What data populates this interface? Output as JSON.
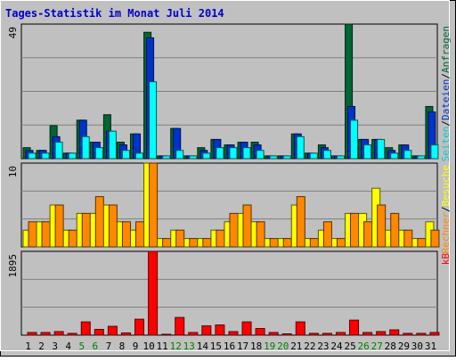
{
  "title": "Tages-Statistik im Monat Juli 2014",
  "colors": {
    "background": "#c0c0c0",
    "title": "#0000cc",
    "anfragen": "#006633",
    "dateien": "#0033cc",
    "seiten": "#00ffff",
    "besuche": "#ffff00",
    "rechner": "#ff8800",
    "kb": "#ff0000",
    "weekend_label": "#008000"
  },
  "chart_data": [
    {
      "type": "bar",
      "panel": "hits",
      "ymax_label": "49",
      "ylim": [
        0,
        49
      ],
      "side_label": {
        "parts": [
          {
            "text": "Seiten",
            "color": "#00cccc"
          },
          {
            "text": "/",
            "color": "#000000"
          },
          {
            "text": "Dateien",
            "color": "#0033cc"
          },
          {
            "text": "/",
            "color": "#000000"
          },
          {
            "text": "Anfragen",
            "color": "#006633"
          }
        ]
      },
      "categories": [
        "1",
        "2",
        "3",
        "4",
        "5",
        "6",
        "7",
        "8",
        "9",
        "10",
        "11",
        "12",
        "13",
        "14",
        "15",
        "16",
        "17",
        "18",
        "19",
        "20",
        "21",
        "22",
        "23",
        "24",
        "25",
        "26",
        "27",
        "28",
        "29",
        "30",
        "31"
      ],
      "weekend_days": [
        "5",
        "6",
        "12",
        "13",
        "19",
        "20",
        "26",
        "27"
      ],
      "series": [
        {
          "name": "Anfragen",
          "color": "#006633",
          "values": [
            4,
            3,
            12,
            2,
            14,
            6,
            16,
            6,
            9,
            46,
            1,
            11,
            1,
            4,
            7,
            5,
            6,
            6,
            1,
            1,
            9,
            2,
            5,
            1,
            49,
            7,
            7,
            4,
            5,
            1,
            19
          ]
        },
        {
          "name": "Dateien",
          "color": "#0033cc",
          "values": [
            3,
            3,
            8,
            2,
            14,
            6,
            10,
            5,
            9,
            44,
            1,
            11,
            1,
            3,
            7,
            5,
            6,
            5,
            1,
            1,
            9,
            2,
            4,
            1,
            19,
            7,
            7,
            3,
            5,
            1,
            17
          ]
        },
        {
          "name": "Seiten",
          "color": "#00ffff",
          "values": [
            2,
            2,
            6,
            2,
            8,
            4,
            10,
            3,
            2,
            28,
            1,
            3,
            1,
            2,
            4,
            4,
            4,
            3,
            1,
            1,
            8,
            2,
            3,
            1,
            14,
            5,
            7,
            2,
            3,
            1,
            5
          ]
        }
      ]
    },
    {
      "type": "bar",
      "panel": "visits",
      "ymax_label": "10",
      "ylim": [
        0,
        10
      ],
      "side_label": {
        "parts": [
          {
            "text": "Rechner",
            "color": "#ff8800"
          },
          {
            "text": "/",
            "color": "#000000"
          },
          {
            "text": "Besuche",
            "color": "#ffff00"
          }
        ]
      },
      "categories": [
        "1",
        "2",
        "3",
        "4",
        "5",
        "6",
        "7",
        "8",
        "9",
        "10",
        "11",
        "12",
        "13",
        "14",
        "15",
        "16",
        "17",
        "18",
        "19",
        "20",
        "21",
        "22",
        "23",
        "24",
        "25",
        "26",
        "27",
        "28",
        "29",
        "30",
        "31"
      ],
      "series": [
        {
          "name": "Besuche",
          "color": "#ffff00",
          "values": [
            2,
            3,
            5,
            2,
            4,
            4,
            5,
            3,
            2,
            10,
            1,
            2,
            1,
            1,
            2,
            3,
            4,
            3,
            1,
            1,
            5,
            1,
            2,
            1,
            4,
            4,
            7,
            2,
            2,
            1,
            3
          ]
        },
        {
          "name": "Rechner",
          "color": "#ff8800",
          "values": [
            3,
            3,
            5,
            2,
            4,
            6,
            5,
            3,
            3,
            10,
            1,
            2,
            1,
            1,
            2,
            4,
            5,
            3,
            1,
            1,
            6,
            1,
            3,
            1,
            4,
            3,
            5,
            4,
            2,
            1,
            2
          ]
        }
      ]
    },
    {
      "type": "bar",
      "panel": "kb",
      "ymax_label": "1895",
      "ylim": [
        0,
        1895
      ],
      "side_label": {
        "parts": [
          {
            "text": "kB",
            "color": "#ff0000"
          }
        ]
      },
      "categories": [
        "1",
        "2",
        "3",
        "4",
        "5",
        "6",
        "7",
        "8",
        "9",
        "10",
        "11",
        "12",
        "13",
        "14",
        "15",
        "16",
        "17",
        "18",
        "19",
        "20",
        "21",
        "22",
        "23",
        "24",
        "25",
        "26",
        "27",
        "28",
        "29",
        "30",
        "31"
      ],
      "series": [
        {
          "name": "kB",
          "color": "#ff0000",
          "values": [
            60,
            60,
            80,
            40,
            300,
            130,
            200,
            50,
            360,
            1895,
            20,
            400,
            60,
            210,
            230,
            80,
            300,
            150,
            60,
            30,
            300,
            40,
            40,
            60,
            340,
            60,
            80,
            120,
            40,
            40,
            60
          ]
        }
      ]
    }
  ]
}
